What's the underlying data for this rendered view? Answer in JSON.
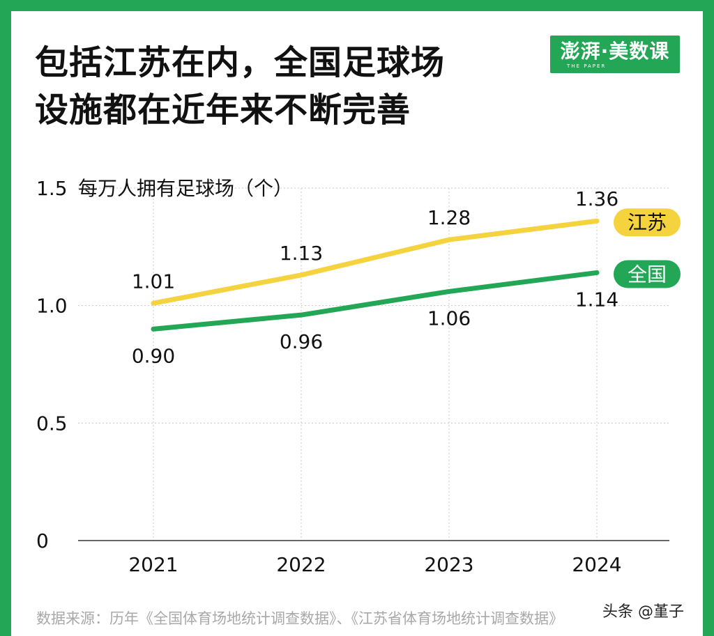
{
  "header": {
    "title_line1": "包括江苏在内，全国足球场",
    "title_line2": "设施都在近年来不断完善",
    "logo_text": "澎湃·美数课",
    "logo_sub": "THE PAPER"
  },
  "chart_data": {
    "type": "line",
    "ylabel": "每万人拥有足球场（个）",
    "categories": [
      "2021",
      "2022",
      "2023",
      "2024"
    ],
    "ylim": [
      0,
      1.5
    ],
    "yticks": [
      "0",
      "0.5",
      "1.0",
      "1.5"
    ],
    "grid": true,
    "series": [
      {
        "name": "江苏",
        "values": [
          1.01,
          1.13,
          1.28,
          1.36
        ],
        "labels": [
          "1.01",
          "1.13",
          "1.28",
          "1.36"
        ],
        "color": "#f5d33e"
      },
      {
        "name": "全国",
        "values": [
          0.9,
          0.96,
          1.06,
          1.14
        ],
        "labels": [
          "0.90",
          "0.96",
          "1.06",
          "1.14"
        ],
        "color": "#23a757"
      }
    ]
  },
  "footer": {
    "source": "数据来源：历年《全国体育场地统计调查数据》、《江苏省体育场地统计调查数据》",
    "watermark": "头条 @堇子"
  }
}
